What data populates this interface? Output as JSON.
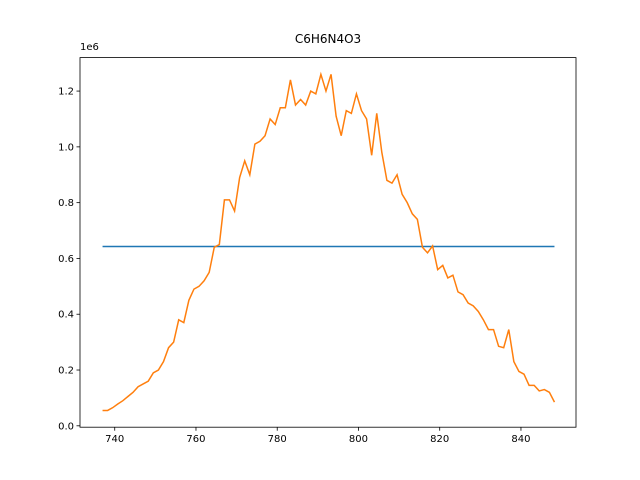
{
  "chart_data": {
    "type": "line",
    "title": "C6H6N4O3",
    "y_offset_label": "1e6",
    "xlim": [
      731.45,
      853.55
    ],
    "ylim": [
      -5000,
      1320000
    ],
    "xticks": [
      740,
      760,
      780,
      800,
      820,
      840
    ],
    "yticks": [
      {
        "value": 0,
        "label": "0.0"
      },
      {
        "value": 200000,
        "label": "0.2"
      },
      {
        "value": 400000,
        "label": "0.4"
      },
      {
        "value": 600000,
        "label": "0.6"
      },
      {
        "value": 800000,
        "label": "0.8"
      },
      {
        "value": 1000000,
        "label": "1.0"
      },
      {
        "value": 1200000,
        "label": "1.2"
      }
    ],
    "series": [
      {
        "color": "#1f77b4",
        "x": [
          737,
          848.25
        ],
        "values": [
          643000,
          643000
        ]
      },
      {
        "color": "#ff7f0e",
        "x": [
          737,
          738.25,
          739.5,
          740.75,
          742,
          743.25,
          744.5,
          745.75,
          747,
          748.25,
          749.5,
          750.75,
          752,
          753.25,
          754.5,
          755.75,
          757,
          758.25,
          759.5,
          760.75,
          762,
          763.25,
          764.5,
          765.75,
          767,
          768.25,
          769.5,
          770.75,
          772,
          773.25,
          774.5,
          775.75,
          777,
          778.25,
          779.5,
          780.75,
          782,
          783.25,
          784.5,
          785.75,
          787,
          788.25,
          789.5,
          790.75,
          792,
          793.25,
          794.5,
          795.75,
          797,
          798.25,
          799.5,
          800.75,
          802,
          803.25,
          804.5,
          805.75,
          807,
          808.25,
          809.5,
          810.75,
          812,
          813.25,
          814.5,
          815.75,
          817,
          818.25,
          819.5,
          820.75,
          822,
          823.25,
          824.5,
          825.75,
          827,
          828.25,
          829.5,
          830.75,
          832,
          833.25,
          834.5,
          835.75,
          837,
          838.25,
          839.5,
          840.75,
          842,
          843.25,
          844.5,
          845.75,
          847,
          848.25
        ],
        "values": [
          55000,
          55000,
          65000,
          78000,
          90000,
          105000,
          120000,
          140000,
          150000,
          160000,
          190000,
          200000,
          230000,
          280000,
          300000,
          380000,
          370000,
          450000,
          490000,
          500000,
          520000,
          550000,
          640000,
          650000,
          810000,
          810000,
          770000,
          890000,
          950000,
          900000,
          1010000,
          1020000,
          1040000,
          1100000,
          1080000,
          1140000,
          1140000,
          1240000,
          1150000,
          1170000,
          1150000,
          1200000,
          1190000,
          1260000,
          1200000,
          1260000,
          1110000,
          1040000,
          1130000,
          1120000,
          1190000,
          1130000,
          1100000,
          970000,
          1120000,
          980000,
          880000,
          870000,
          900000,
          830000,
          800000,
          760000,
          740000,
          640000,
          620000,
          645000,
          560000,
          575000,
          530000,
          540000,
          480000,
          470000,
          440000,
          430000,
          410000,
          380000,
          345000,
          345000,
          285000,
          280000,
          345000,
          230000,
          195000,
          185000,
          145000,
          145000,
          125000,
          130000,
          120000,
          85000
        ]
      }
    ]
  }
}
